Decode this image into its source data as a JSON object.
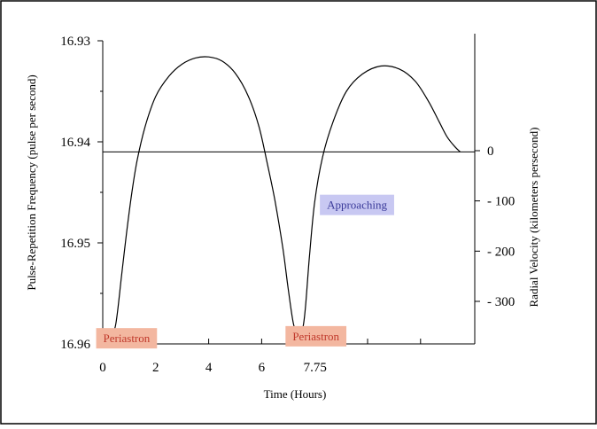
{
  "chart_data": {
    "type": "line",
    "title": "",
    "xlabel": "Time (Hours)",
    "ylabel_left": "Pulse-Repetition Frequency (pulse per second)",
    "ylabel_right": "Radial Velocity (kilometers persecond)",
    "x_ticks": [
      {
        "value": 0,
        "label": "0"
      },
      {
        "value": 2,
        "label": "2"
      },
      {
        "value": 4,
        "label": "4"
      },
      {
        "value": 6,
        "label": "6"
      },
      {
        "value": 7.75,
        "label": "7.75"
      }
    ],
    "x_minor_ticks": [
      10,
      12
    ],
    "xlim": [
      0,
      14
    ],
    "left_axis": {
      "ylim": [
        16.93,
        16.96
      ],
      "ticks": [
        {
          "value": 16.93,
          "label": "16.93"
        },
        {
          "value": 16.94,
          "label": "16.94"
        },
        {
          "value": 16.95,
          "label": "16.95"
        },
        {
          "value": 16.96,
          "label": "16.96"
        }
      ],
      "inverted": true
    },
    "right_axis": {
      "ticks": [
        {
          "value": 0,
          "label": "0"
        },
        {
          "value": -100,
          "label": "- 100"
        },
        {
          "value": -200,
          "label": "- 200"
        },
        {
          "value": -300,
          "label": "- 300"
        }
      ]
    },
    "zero_line_left_value": 16.941,
    "series": [
      {
        "name": "",
        "x": [
          0.3,
          0.45,
          0.55,
          0.7,
          0.9,
          1.1,
          1.3,
          1.6,
          2.0,
          2.5,
          3.0,
          3.5,
          4.0,
          4.5,
          5.0,
          5.5,
          5.9,
          6.2,
          6.5,
          6.8,
          7.0,
          7.2,
          7.35,
          7.45,
          7.55,
          7.65,
          7.8,
          8.0,
          8.3,
          8.7,
          9.2,
          9.8,
          10.5,
          11.2,
          11.8,
          12.3,
          12.7,
          13.0,
          13.3,
          13.5
        ],
        "y": [
          16.9587,
          16.9585,
          16.957,
          16.9535,
          16.949,
          16.945,
          16.9418,
          16.9385,
          16.9355,
          16.9335,
          16.9323,
          16.9317,
          16.9316,
          16.932,
          16.9332,
          16.9355,
          16.9385,
          16.942,
          16.9458,
          16.9505,
          16.9545,
          16.958,
          16.9587,
          16.9588,
          16.9585,
          16.9565,
          16.9515,
          16.946,
          16.9415,
          16.938,
          16.935,
          16.9333,
          16.9325,
          16.9328,
          16.934,
          16.936,
          16.938,
          16.9395,
          16.9405,
          16.941
        ]
      }
    ],
    "annotations": [
      {
        "text": "Periastron",
        "x": 0.9,
        "y": 16.9594,
        "color": "#f3b7a0",
        "text_color": "#c0392b"
      },
      {
        "text": "Periastron",
        "x": 8.05,
        "y": 16.9592,
        "color": "#f3b7a0",
        "text_color": "#c0392b"
      },
      {
        "text": "Approaching",
        "x": 9.6,
        "y": 16.9462,
        "color": "#c8c8f2",
        "text_color": "#3a3a9a"
      }
    ],
    "grid": false,
    "legend": "none",
    "line_color": "#000000"
  }
}
